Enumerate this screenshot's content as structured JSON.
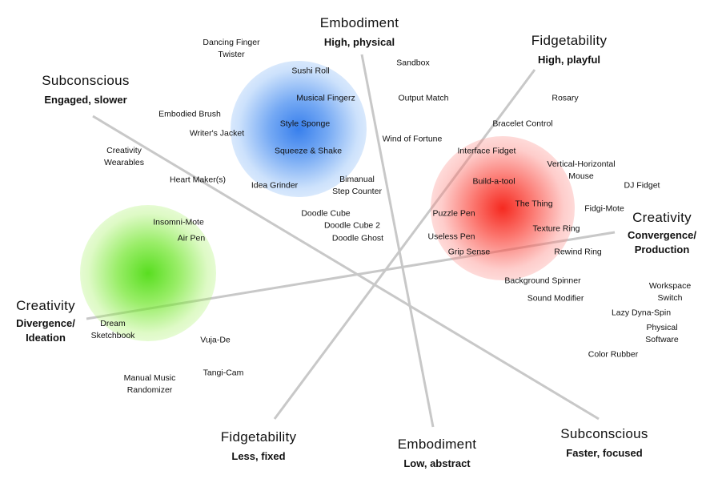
{
  "axes": {
    "embodiment_high": {
      "title": "Embodiment",
      "subtitle": "High, physical"
    },
    "embodiment_low": {
      "title": "Embodiment",
      "subtitle": "Low, abstract"
    },
    "fidget_high": {
      "title": "Fidgetability",
      "subtitle": "High, playful"
    },
    "fidget_low": {
      "title": "Fidgetability",
      "subtitle": "Less, fixed"
    },
    "subconscious_slow": {
      "title": "Subconscious",
      "subtitle": "Engaged, slower"
    },
    "subconscious_fast": {
      "title": "Subconscious",
      "subtitle": "Faster, focused"
    },
    "creativity_converge": {
      "title": "Creativity",
      "subtitle": "Convergence/\nProduction"
    },
    "creativity_diverge": {
      "title": "Creativity",
      "subtitle": "Divergence/\nIdeation"
    }
  },
  "line_color": "#c8c8c8",
  "clusters": [
    {
      "name": "blue",
      "color": "#2d78eb"
    },
    {
      "name": "green",
      "color": "#50dc14"
    },
    {
      "name": "red",
      "color": "#f51e14"
    }
  ],
  "items": [
    {
      "label": "Dancing Finger\nTwister"
    },
    {
      "label": "Sushi Roll"
    },
    {
      "label": "Sandbox"
    },
    {
      "label": "Musical Fingerz"
    },
    {
      "label": "Output Match"
    },
    {
      "label": "Rosary"
    },
    {
      "label": "Embodied Brush"
    },
    {
      "label": "Style Sponge"
    },
    {
      "label": "Bracelet Control"
    },
    {
      "label": "Writer's Jacket"
    },
    {
      "label": "Wind of Fortune"
    },
    {
      "label": "Creativity\nWearables"
    },
    {
      "label": "Squeeze & Shake"
    },
    {
      "label": "Interface Fidget"
    },
    {
      "label": "Vertical-Horizontal\nMouse"
    },
    {
      "label": "Heart Maker(s)"
    },
    {
      "label": "Idea Grinder"
    },
    {
      "label": "Bimanual\nStep Counter"
    },
    {
      "label": "Build-a-tool"
    },
    {
      "label": "DJ Fidget"
    },
    {
      "label": "The Thing"
    },
    {
      "label": "Fidgi-Mote"
    },
    {
      "label": "Doodle Cube"
    },
    {
      "label": "Puzzle Pen"
    },
    {
      "label": "Doodle Cube 2"
    },
    {
      "label": "Insomni-Mote"
    },
    {
      "label": "Texture Ring"
    },
    {
      "label": "Air Pen"
    },
    {
      "label": "Doodle Ghost"
    },
    {
      "label": "Useless Pen"
    },
    {
      "label": "Grip Sense"
    },
    {
      "label": "Rewind Ring"
    },
    {
      "label": "Background Spinner"
    },
    {
      "label": "Workspace Switch"
    },
    {
      "label": "Sound Modifier"
    },
    {
      "label": "Lazy Dyna-Spin"
    },
    {
      "label": "Dream\nSketchbook"
    },
    {
      "label": "Physical Software"
    },
    {
      "label": "Vuja-De"
    },
    {
      "label": "Color Rubber"
    },
    {
      "label": "Tangi-Cam"
    },
    {
      "label": "Manual Music\nRandomizer"
    }
  ]
}
